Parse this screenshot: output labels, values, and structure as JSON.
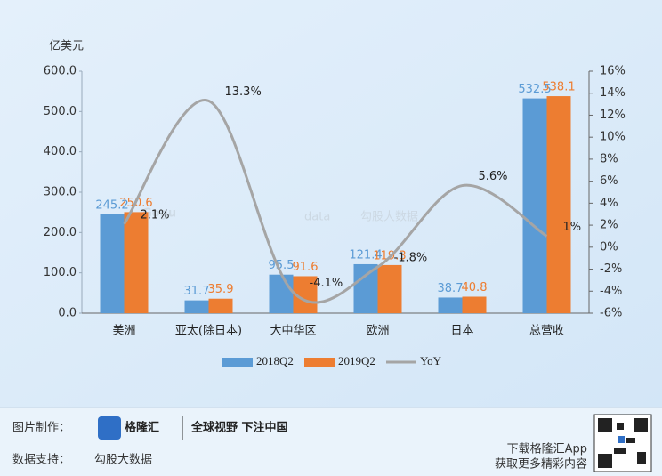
{
  "chart_data": {
    "type": "bar",
    "y_label": "亿美元",
    "categories": [
      "美洲",
      "亚太(除日本)",
      "大中华区",
      "欧洲",
      "日本",
      "总营收"
    ],
    "series": [
      {
        "name": "2018Q2",
        "color": "#5b9bd5",
        "values": [
          245.2,
          31.7,
          95.5,
          121.4,
          38.7,
          532.5
        ]
      },
      {
        "name": "2019Q2",
        "color": "#ed7d31",
        "values": [
          250.6,
          35.9,
          91.6,
          119.3,
          40.8,
          538.1
        ]
      },
      {
        "name": "YoY",
        "type": "line",
        "axis": "y2",
        "color": "#a5a5a5",
        "values": [
          2.1,
          13.3,
          -4.1,
          -1.8,
          5.6,
          1
        ],
        "value_labels": [
          "2.1%",
          "13.3%",
          "-4.1%",
          "-1.8%",
          "5.6%",
          "1%"
        ]
      }
    ],
    "ylim": [
      0,
      600
    ],
    "yticks": [
      {
        "value": 0,
        "label": "0.0"
      },
      {
        "value": 100,
        "label": "100.0"
      },
      {
        "value": 200,
        "label": "200.0"
      },
      {
        "value": 300,
        "label": "300.0"
      },
      {
        "value": 400,
        "label": "400.0"
      },
      {
        "value": 500,
        "label": "500.0"
      },
      {
        "value": 600,
        "label": "600.0"
      }
    ],
    "y2lim": [
      -6,
      16
    ],
    "y2ticks": [
      {
        "value": -6,
        "label": "-6%"
      },
      {
        "value": -4,
        "label": "-4%"
      },
      {
        "value": -2,
        "label": "-2%"
      },
      {
        "value": 0,
        "label": "0%"
      },
      {
        "value": 2,
        "label": "2%"
      },
      {
        "value": 4,
        "label": "4%"
      },
      {
        "value": 6,
        "label": "6%"
      },
      {
        "value": 8,
        "label": "8%"
      },
      {
        "value": 10,
        "label": "10%"
      },
      {
        "value": 12,
        "label": "12%"
      },
      {
        "value": 14,
        "label": "14%"
      },
      {
        "value": 16,
        "label": "16%"
      }
    ]
  },
  "watermark": {
    "logo": "Gogu",
    "sub": "data",
    "name": "勾股大数据"
  },
  "footer": {
    "made_by_label": "图片制作：",
    "brand": "格隆汇",
    "slogan": "全球视野 下注中国",
    "data_label": "数据支持：",
    "data_source": "勾股大数据",
    "download": "下载格隆汇App",
    "more": "获取更多精彩内容"
  }
}
